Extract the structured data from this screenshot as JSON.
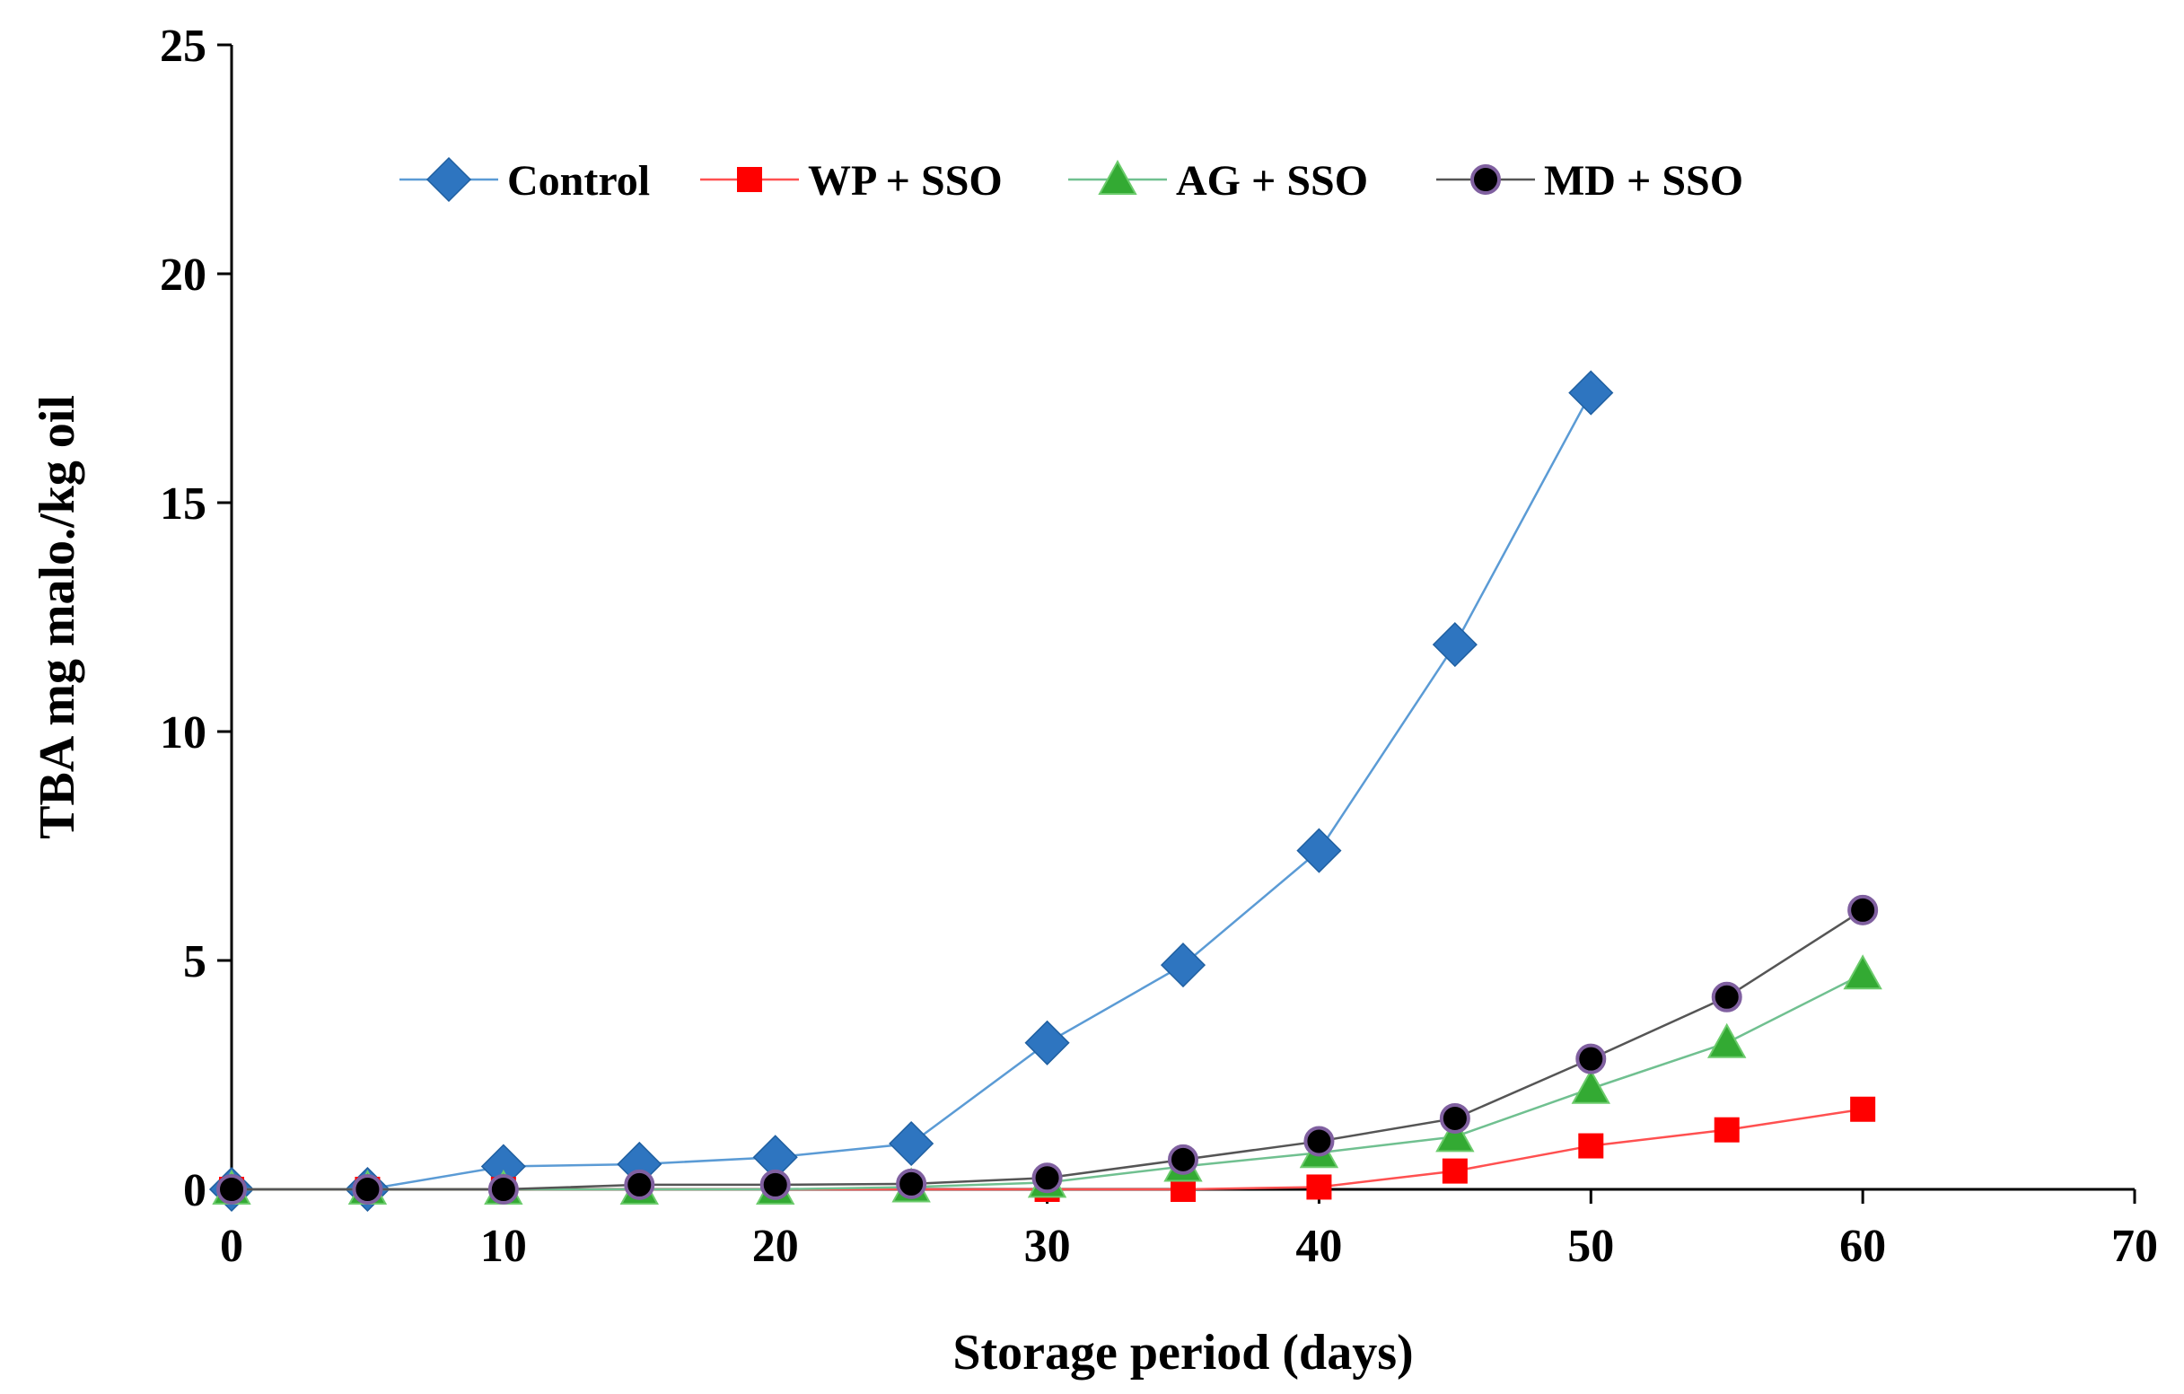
{
  "chart_data": {
    "type": "line",
    "title": "",
    "xlabel": "Storage period (days)",
    "ylabel": "TBA mg malo./kg oil",
    "xlim": [
      0,
      70
    ],
    "ylim": [
      0,
      25
    ],
    "xticks": [
      0,
      10,
      20,
      30,
      40,
      50,
      60,
      70
    ],
    "yticks": [
      0,
      5,
      10,
      15,
      20,
      25
    ],
    "grid": false,
    "legend_position": "top",
    "series": [
      {
        "name": "Control",
        "color": "#5B9BD5",
        "marker_color": "#2E75C0",
        "marker": "diamond",
        "x": [
          0,
          5,
          10,
          15,
          20,
          25,
          30,
          35,
          40,
          45,
          50
        ],
        "y": [
          0,
          0,
          0.5,
          0.55,
          0.7,
          1.0,
          3.2,
          4.9,
          7.4,
          11.9,
          17.4
        ]
      },
      {
        "name": "WP + SSO",
        "color": "#FF5050",
        "marker_color": "#FF0000",
        "marker": "square",
        "x": [
          0,
          5,
          10,
          15,
          20,
          25,
          30,
          35,
          40,
          45,
          50,
          55,
          60
        ],
        "y": [
          0,
          0,
          0,
          0,
          0,
          0,
          0,
          0,
          0.05,
          0.4,
          0.95,
          1.3,
          1.75
        ]
      },
      {
        "name": "AG + SSO",
        "color": "#70C090",
        "marker_color": "#33AA33",
        "marker": "triangle",
        "x": [
          0,
          5,
          10,
          15,
          20,
          25,
          30,
          35,
          40,
          45,
          50,
          55,
          60
        ],
        "y": [
          0,
          0,
          0,
          0,
          0,
          0.05,
          0.15,
          0.5,
          0.8,
          1.15,
          2.2,
          3.2,
          4.7
        ]
      },
      {
        "name": "MD + SSO",
        "color": "#555555",
        "marker_color": "#000000",
        "marker_stroke": "#8060A0",
        "marker": "circle",
        "x": [
          0,
          5,
          10,
          15,
          20,
          25,
          30,
          35,
          40,
          45,
          50,
          55,
          60
        ],
        "y": [
          0,
          0,
          0,
          0.1,
          0.1,
          0.12,
          0.25,
          0.65,
          1.05,
          1.55,
          2.85,
          4.2,
          6.1
        ]
      }
    ]
  }
}
